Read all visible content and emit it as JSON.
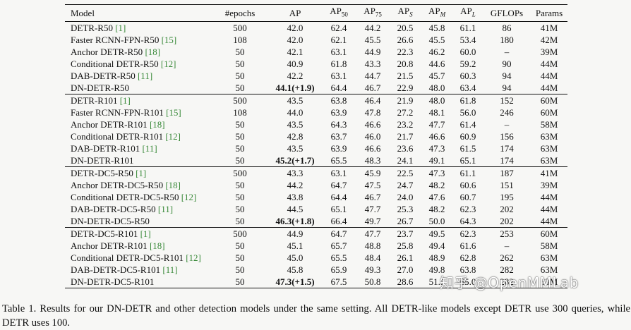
{
  "table": {
    "headers": [
      "Model",
      "#epochs",
      "AP",
      "AP",
      "AP",
      "AP",
      "AP",
      "AP",
      "GFLOPs",
      "Params"
    ],
    "header_subscripts": [
      "",
      "",
      "",
      "50",
      "75",
      "S",
      "M",
      "L",
      "",
      ""
    ],
    "groups": [
      [
        {
          "model": "DETR-R50",
          "ref": "[1]",
          "epochs": "500",
          "ap": "42.0",
          "ap50": "62.4",
          "ap75": "44.2",
          "aps": "20.5",
          "apm": "45.8",
          "apl": "61.1",
          "gflops": "86",
          "params": "41M"
        },
        {
          "model": "Faster RCNN-FPN-R50",
          "ref": "[15]",
          "epochs": "108",
          "ap": "42.0",
          "ap50": "62.1",
          "ap75": "45.5",
          "aps": "26.6",
          "apm": "45.5",
          "apl": "53.4",
          "gflops": "180",
          "params": "42M"
        },
        {
          "model": "Anchor DETR-R50",
          "ref": "[18]",
          "epochs": "50",
          "ap": "42.1",
          "ap50": "63.1",
          "ap75": "44.9",
          "aps": "22.3",
          "apm": "46.2",
          "apl": "60.0",
          "gflops": "–",
          "params": "39M"
        },
        {
          "model": "Conditional DETR-R50",
          "ref": "[12]",
          "epochs": "50",
          "ap": "40.9",
          "ap50": "61.8",
          "ap75": "43.3",
          "aps": "20.8",
          "apm": "44.6",
          "apl": "59.2",
          "gflops": "90",
          "params": "44M"
        },
        {
          "model": "DAB-DETR-R50",
          "ref": "[11]",
          "epochs": "50",
          "ap": "42.2",
          "ap50": "63.1",
          "ap75": "44.7",
          "aps": "21.5",
          "apm": "45.7",
          "apl": "60.3",
          "gflops": "94",
          "params": "44M"
        },
        {
          "model": "DN-DETR-R50",
          "ref": "",
          "epochs": "50",
          "ap": "44.1(+1.9)",
          "best": true,
          "ap50": "64.4",
          "ap75": "46.7",
          "aps": "22.9",
          "apm": "48.0",
          "apl": "63.4",
          "gflops": "94",
          "params": "44M"
        }
      ],
      [
        {
          "model": "DETR-R101",
          "ref": "[1]",
          "epochs": "500",
          "ap": "43.5",
          "ap50": "63.8",
          "ap75": "46.4",
          "aps": "21.9",
          "apm": "48.0",
          "apl": "61.8",
          "gflops": "152",
          "params": "60M"
        },
        {
          "model": "Faster RCNN-FPN-R101",
          "ref": "[15]",
          "epochs": "108",
          "ap": "44.0",
          "ap50": "63.9",
          "ap75": "47.8",
          "aps": "27.2",
          "apm": "48.1",
          "apl": "56.0",
          "gflops": "246",
          "params": "60M"
        },
        {
          "model": "Anchor DETR-R101",
          "ref": "[18]",
          "epochs": "50",
          "ap": "43.5",
          "ap50": "64.3",
          "ap75": "46.6",
          "aps": "23.2",
          "apm": "47.7",
          "apl": "61.4",
          "gflops": "–",
          "params": "58M"
        },
        {
          "model": "Conditional DETR-R101",
          "ref": "[12]",
          "epochs": "50",
          "ap": "42.8",
          "ap50": "63.7",
          "ap75": "46.0",
          "aps": "21.7",
          "apm": "46.6",
          "apl": "60.9",
          "gflops": "156",
          "params": "63M"
        },
        {
          "model": "DAB-DETR-R101",
          "ref": "[11]",
          "epochs": "50",
          "ap": "43.5",
          "ap50": "63.9",
          "ap75": "46.6",
          "aps": "23.6",
          "apm": "47.3",
          "apl": "61.5",
          "gflops": "174",
          "params": "63M"
        },
        {
          "model": "DN-DETR-R101",
          "ref": "",
          "epochs": "50",
          "ap": "45.2(+1.7)",
          "best": true,
          "ap50": "65.5",
          "ap75": "48.3",
          "aps": "24.1",
          "apm": "49.1",
          "apl": "65.1",
          "gflops": "174",
          "params": "63M"
        }
      ],
      [
        {
          "model": "DETR-DC5-R50",
          "ref": "[1]",
          "epochs": "500",
          "ap": "43.3",
          "ap50": "63.1",
          "ap75": "45.9",
          "aps": "22.5",
          "apm": "47.3",
          "apl": "61.1",
          "gflops": "187",
          "params": "41M"
        },
        {
          "model": "Anchor DETR-DC5-R50",
          "ref": "[18]",
          "epochs": "50",
          "ap": "44.2",
          "ap50": "64.7",
          "ap75": "47.5",
          "aps": "24.7",
          "apm": "48.2",
          "apl": "60.6",
          "gflops": "151",
          "params": "39M"
        },
        {
          "model": "Conditional DETR-DC5-R50",
          "ref": "[12]",
          "epochs": "50",
          "ap": "43.8",
          "ap50": "64.4",
          "ap75": "46.7",
          "aps": "24.0",
          "apm": "47.6",
          "apl": "60.7",
          "gflops": "195",
          "params": "44M"
        },
        {
          "model": "DAB-DETR-DC5-R50",
          "ref": "[11]",
          "epochs": "50",
          "ap": "44.5",
          "ap50": "65.1",
          "ap75": "47.7",
          "aps": "25.3",
          "apm": "48.2",
          "apl": "62.3",
          "gflops": "202",
          "params": "44M"
        },
        {
          "model": "DN-DETR-DC5-R50",
          "ref": "",
          "epochs": "50",
          "ap": "46.3(+1.8)",
          "best": true,
          "ap50": "66.4",
          "ap75": "49.7",
          "aps": "26.7",
          "apm": "50.0",
          "apl": "64.3",
          "gflops": "202",
          "params": "44M"
        }
      ],
      [
        {
          "model": "DETR-DC5-R101",
          "ref": "[1]",
          "epochs": "500",
          "ap": "44.9",
          "ap50": "64.7",
          "ap75": "47.7",
          "aps": "23.7",
          "apm": "49.5",
          "apl": "62.3",
          "gflops": "253",
          "params": "60M"
        },
        {
          "model": "Anchor DETR-R101",
          "ref": "[18]",
          "epochs": "50",
          "ap": "45.1",
          "ap50": "65.7",
          "ap75": "48.8",
          "aps": "25.8",
          "apm": "49.4",
          "apl": "61.6",
          "gflops": "–",
          "params": "58M"
        },
        {
          "model": "Conditional DETR-DC5-R101",
          "ref": "[12]",
          "epochs": "50",
          "ap": "45.0",
          "ap50": "65.5",
          "ap75": "48.4",
          "aps": "26.1",
          "apm": "48.9",
          "apl": "62.8",
          "gflops": "262",
          "params": "63M"
        },
        {
          "model": "DAB-DETR-DC5-R101",
          "ref": "[11]",
          "epochs": "50",
          "ap": "45.8",
          "ap50": "65.9",
          "ap75": "49.3",
          "aps": "27.0",
          "apm": "49.8",
          "apl": "63.8",
          "gflops": "282",
          "params": "63M"
        },
        {
          "model": "DN-DETR-DC5-R101",
          "ref": "",
          "epochs": "50",
          "ap": "47.3(+1.5)",
          "best": true,
          "ap50": "67.5",
          "ap75": "50.8",
          "aps": "28.6",
          "apm": "51.5",
          "apl": "65.0",
          "gflops": "282",
          "params": "63M"
        }
      ]
    ]
  },
  "caption": "Table 1. Results for our DN-DETR and other detection models under the same setting. All DETR-like models except DETR use 300 queries, while DETR uses 100.",
  "watermark": "知乎 @OpenMMLab",
  "colors": {
    "ref_link": "#3a8a3a",
    "background": "#f7f7f5"
  }
}
